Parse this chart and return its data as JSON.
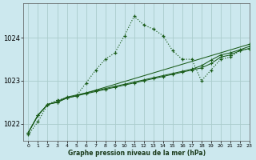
{
  "title": "Graphe pression niveau de la mer (hPa)",
  "bg_color": "#cce8ee",
  "grid_color": "#aacccc",
  "line_color": "#1a5c1a",
  "xlim": [
    -0.5,
    23
  ],
  "ylim": [
    1021.6,
    1024.8
  ],
  "yticks": [
    1022,
    1023,
    1024
  ],
  "xticks": [
    0,
    1,
    2,
    3,
    4,
    5,
    6,
    7,
    8,
    9,
    10,
    11,
    12,
    13,
    14,
    15,
    16,
    17,
    18,
    19,
    20,
    21,
    22,
    23
  ],
  "series_dotted": {
    "x": [
      0,
      1,
      2,
      3,
      4,
      5,
      6,
      7,
      8,
      9,
      10,
      11,
      12,
      13,
      14,
      15,
      16,
      17,
      18,
      19,
      20,
      21,
      22,
      23
    ],
    "y": [
      1021.75,
      1022.05,
      1022.45,
      1022.55,
      1022.6,
      1022.65,
      1022.95,
      1023.25,
      1023.5,
      1023.65,
      1024.05,
      1024.5,
      1024.3,
      1024.2,
      1024.05,
      1023.7,
      1023.5,
      1023.5,
      1023.0,
      1023.25,
      1023.5,
      1023.55,
      1023.7,
      1023.75
    ]
  },
  "series_solid1": {
    "x": [
      0,
      1,
      2,
      3,
      4,
      5,
      6,
      7,
      8,
      9,
      10,
      11,
      12,
      13,
      14,
      15,
      16,
      17,
      18,
      19,
      20,
      21,
      22,
      23
    ],
    "y": [
      1021.8,
      1022.2,
      1022.45,
      1022.5,
      1022.6,
      1022.65,
      1022.7,
      1022.75,
      1022.8,
      1022.85,
      1022.9,
      1022.95,
      1023.0,
      1023.05,
      1023.1,
      1023.15,
      1023.2,
      1023.25,
      1023.3,
      1023.4,
      1023.55,
      1023.6,
      1023.7,
      1023.75
    ]
  },
  "series_solid2": {
    "x": [
      0,
      1,
      2,
      3,
      4,
      5,
      6,
      7,
      8,
      9,
      10,
      11,
      12,
      13,
      14,
      15,
      16,
      17,
      18,
      19,
      20,
      21,
      22,
      23
    ],
    "y": [
      1021.8,
      1022.2,
      1022.45,
      1022.52,
      1022.62,
      1022.67,
      1022.72,
      1022.77,
      1022.82,
      1022.87,
      1022.92,
      1022.97,
      1023.02,
      1023.07,
      1023.12,
      1023.17,
      1023.22,
      1023.27,
      1023.35,
      1023.48,
      1023.6,
      1023.65,
      1023.72,
      1023.8
    ]
  },
  "series_solid3": {
    "x": [
      0,
      1,
      2,
      3,
      4,
      5,
      23
    ],
    "y": [
      1021.8,
      1022.2,
      1022.45,
      1022.5,
      1022.6,
      1022.65,
      1023.85
    ]
  }
}
